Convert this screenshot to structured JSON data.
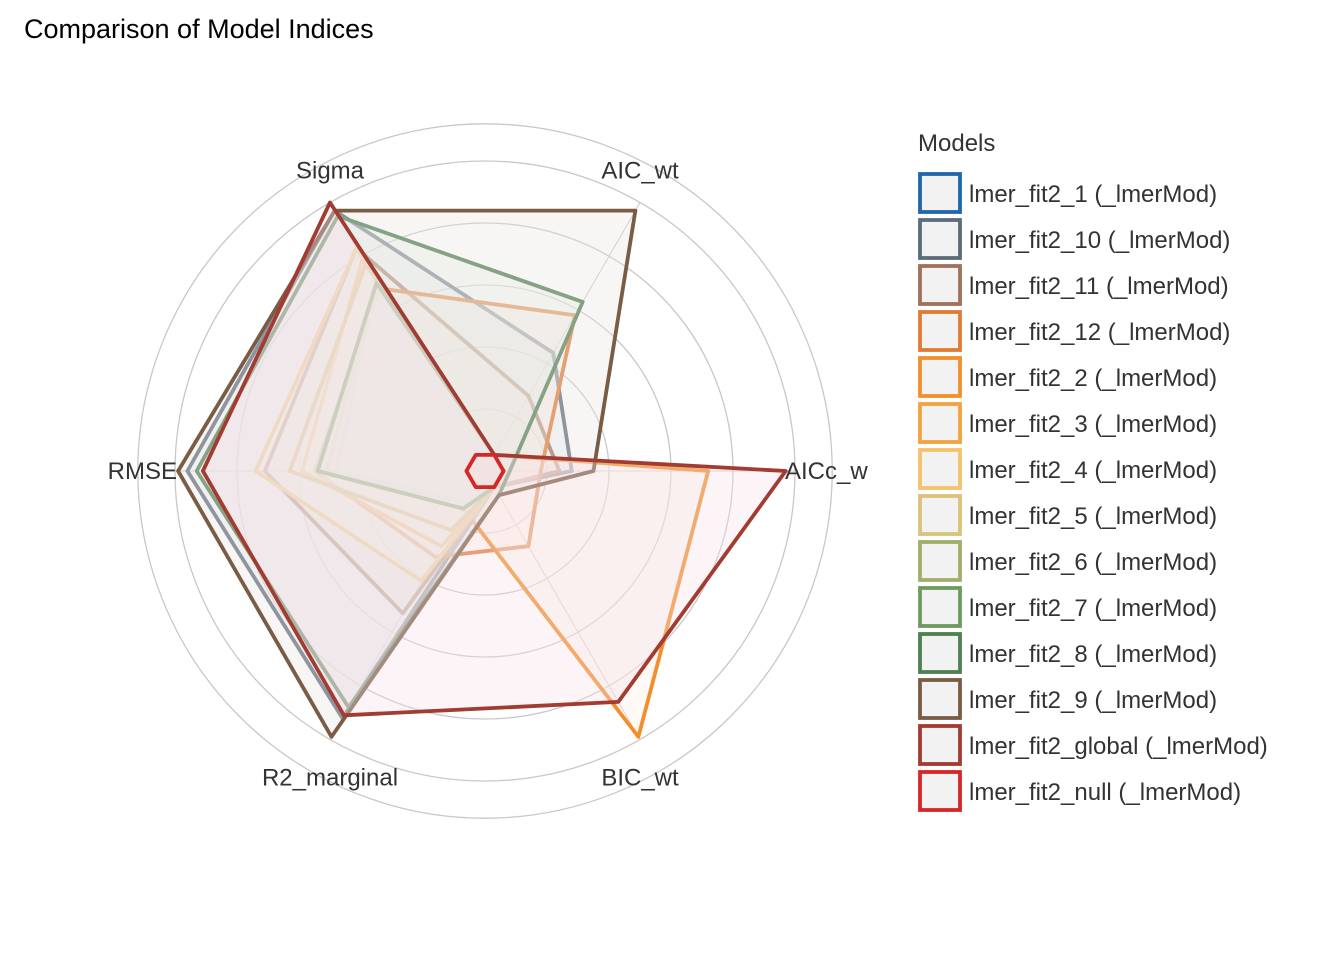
{
  "chart_data": {
    "type": "radar",
    "title": "Comparison of Model Indices",
    "axes": [
      "AICc_wt",
      "AIC_wt",
      "Sigma",
      "RMSE",
      "R2_marginal",
      "BIC_wt"
    ],
    "axis_label_display": [
      "AICc_w",
      "AIC_wt",
      "Sigma",
      "RMSE",
      "R2_marginal",
      "BIC_wt"
    ],
    "range": [
      0,
      1
    ],
    "grid": true,
    "legend_title": "Models",
    "legend_position": "right",
    "series": [
      {
        "name": "lmer_fit2_1 (_lmerMod)",
        "color": "#2166ac",
        "fill": "#dfe8f1",
        "values": [
          0.06,
          0.06,
          0.7,
          0.48,
          0.12,
          0.06
        ]
      },
      {
        "name": "lmer_fit2_10 (_lmerMod)",
        "color": "#5c6b7a",
        "fill": "#e2e5e8",
        "values": [
          0.28,
          0.44,
          0.97,
          0.96,
          0.92,
          0.06
        ]
      },
      {
        "name": "lmer_fit2_11 (_lmerMod)",
        "color": "#a0715a",
        "fill": "#efe4de",
        "values": [
          0.24,
          0.28,
          0.83,
          0.71,
          0.53,
          0.06
        ]
      },
      {
        "name": "lmer_fit2_12 (_lmerMod)",
        "color": "#e07b35",
        "fill": "#faebe0",
        "values": [
          0.18,
          0.58,
          0.68,
          0.55,
          0.32,
          0.28
        ]
      },
      {
        "name": "lmer_fit2_2 (_lmerMod)",
        "color": "#f28e2b",
        "fill": "#fcefe3",
        "values": [
          0.72,
          0.06,
          0.7,
          0.51,
          0.14,
          0.99
        ]
      },
      {
        "name": "lmer_fit2_3 (_lmerMod)",
        "color": "#f1a340",
        "fill": "#fdf1e2",
        "values": [
          0.06,
          0.06,
          0.79,
          0.59,
          0.28,
          0.06
        ]
      },
      {
        "name": "lmer_fit2_4 (_lmerMod)",
        "color": "#f5c26b",
        "fill": "#fdf5e6",
        "values": [
          0.06,
          0.06,
          0.83,
          0.74,
          0.41,
          0.06
        ]
      },
      {
        "name": "lmer_fit2_5 (_lmerMod)",
        "color": "#d9c27a",
        "fill": "#f9f4e4",
        "values": [
          0.06,
          0.06,
          0.77,
          0.63,
          0.22,
          0.06
        ]
      },
      {
        "name": "lmer_fit2_6 (_lmerMod)",
        "color": "#a1ad6a",
        "fill": "#eef0e2",
        "values": [
          0.06,
          0.06,
          0.7,
          0.54,
          0.14,
          0.06
        ]
      },
      {
        "name": "lmer_fit2_7 (_lmerMod)",
        "color": "#6f9a5e",
        "fill": "#e6eee2",
        "values": [
          0.06,
          0.06,
          0.7,
          0.54,
          0.14,
          0.06
        ]
      },
      {
        "name": "lmer_fit2_8 (_lmerMod)",
        "color": "#4f7f52",
        "fill": "#e2ebe2",
        "values": [
          0.08,
          0.63,
          0.95,
          0.93,
          0.88,
          0.09
        ]
      },
      {
        "name": "lmer_fit2_9 (_lmerMod)",
        "color": "#7a5c45",
        "fill": "#ebe6e2",
        "values": [
          0.35,
          0.97,
          0.97,
          0.99,
          0.99,
          0.09
        ]
      },
      {
        "name": "lmer_fit2_global (_lmerMod)",
        "color": "#a23b32",
        "fill": "#f6dfe9",
        "values": [
          0.97,
          0.06,
          1.0,
          0.91,
          0.91,
          0.86
        ]
      },
      {
        "name": "lmer_fit2_null (_lmerMod)",
        "color": "#d62728",
        "fill": "#f5dede",
        "values": [
          0.06,
          0.06,
          0.06,
          0.06,
          0.06,
          0.06
        ]
      }
    ]
  }
}
